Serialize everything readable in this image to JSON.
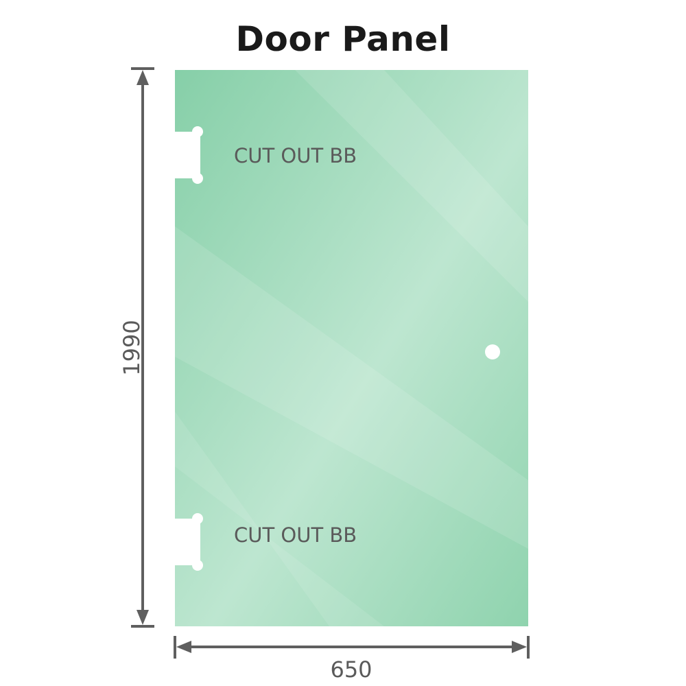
{
  "title": "Door Panel",
  "colors": {
    "glass": "#86cfa8",
    "glass_light": "#bfe6d2",
    "dimension": "#5f5f5f"
  },
  "panel": {
    "cutouts": [
      {
        "label": "CUT OUT BB"
      },
      {
        "label": "CUT OUT BB"
      }
    ],
    "handle_hole": true
  },
  "dimensions": {
    "height": "1990",
    "width": "650"
  }
}
